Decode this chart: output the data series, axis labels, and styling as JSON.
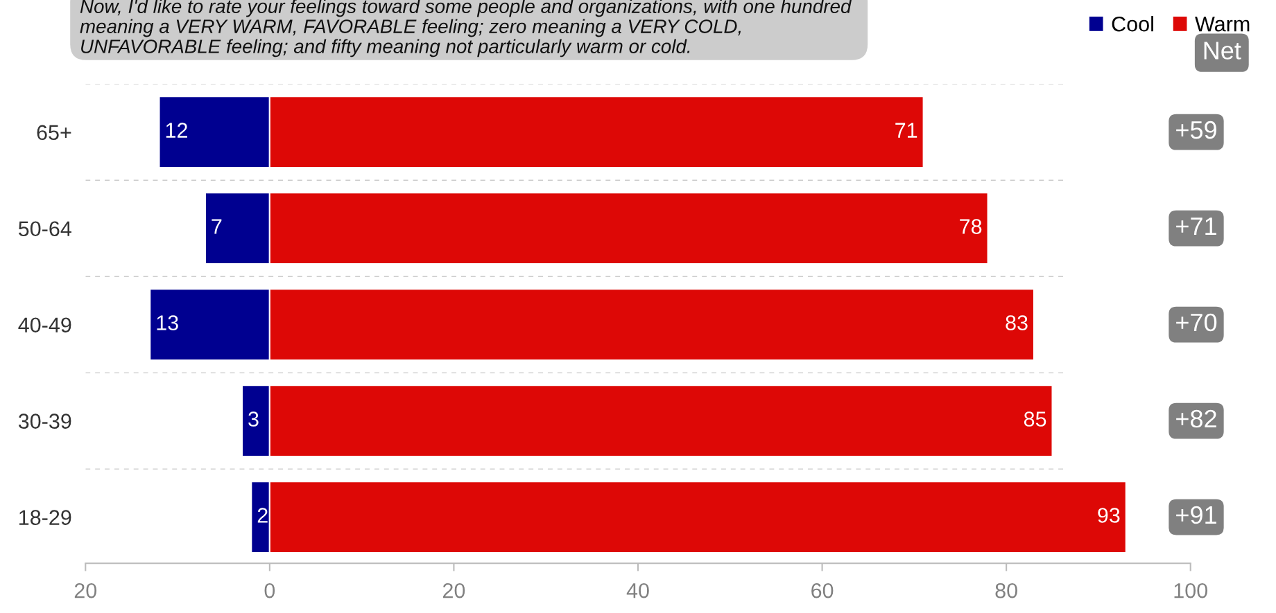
{
  "chart_data": {
    "type": "bar",
    "orientation": "horizontal",
    "title": "Now, I'd like to rate your feelings toward some people and organizations, with one hundred meaning a VERY WARM, FAVORABLE feeling; zero meaning a VERY COLD, UNFAVORABLE feeling; and fifty meaning not particularly warm or cold.",
    "categories": [
      "65+",
      "50-64",
      "40-49",
      "30-39",
      "18-29"
    ],
    "series": [
      {
        "name": "Cool",
        "color": "#000090",
        "values": [
          12,
          7,
          13,
          3,
          2
        ],
        "base": [
          -12,
          -7,
          -13,
          -3,
          -2
        ],
        "value_labels": [
          "12",
          "7",
          "13",
          "3",
          "2"
        ]
      },
      {
        "name": "Warm",
        "color": "#dd0806",
        "values": [
          71,
          78,
          83,
          85,
          93
        ],
        "value_labels": [
          "71",
          "78",
          "83",
          "85",
          "93"
        ]
      }
    ],
    "xlim": [
      -20,
      100
    ],
    "xticks": [
      {
        "value": -20,
        "label": "20"
      },
      0,
      20,
      40,
      60,
      80,
      100
    ],
    "annotations": [
      "Net",
      "+59",
      "+71",
      "+70",
      "+82",
      "+91"
    ],
    "grid": "y",
    "legend": "top right"
  }
}
